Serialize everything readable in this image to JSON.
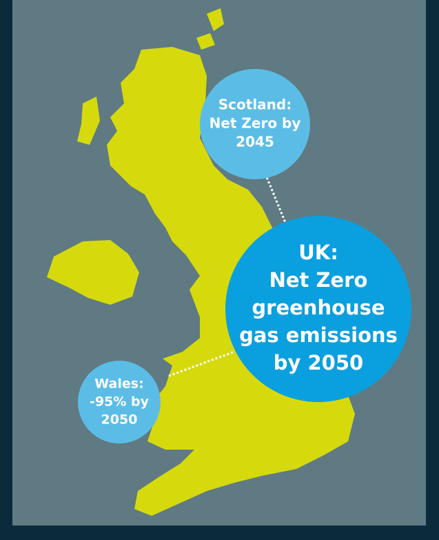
{
  "callouts": {
    "scotland": {
      "lines": [
        "Scotland:",
        "Net Zero by",
        "2045"
      ]
    },
    "uk": {
      "lines": [
        "UK:",
        "Net Zero",
        "greenhouse",
        "gas emissions",
        "by 2050"
      ]
    },
    "wales": {
      "lines": [
        "Wales:",
        "-95% by",
        "2050"
      ]
    }
  }
}
